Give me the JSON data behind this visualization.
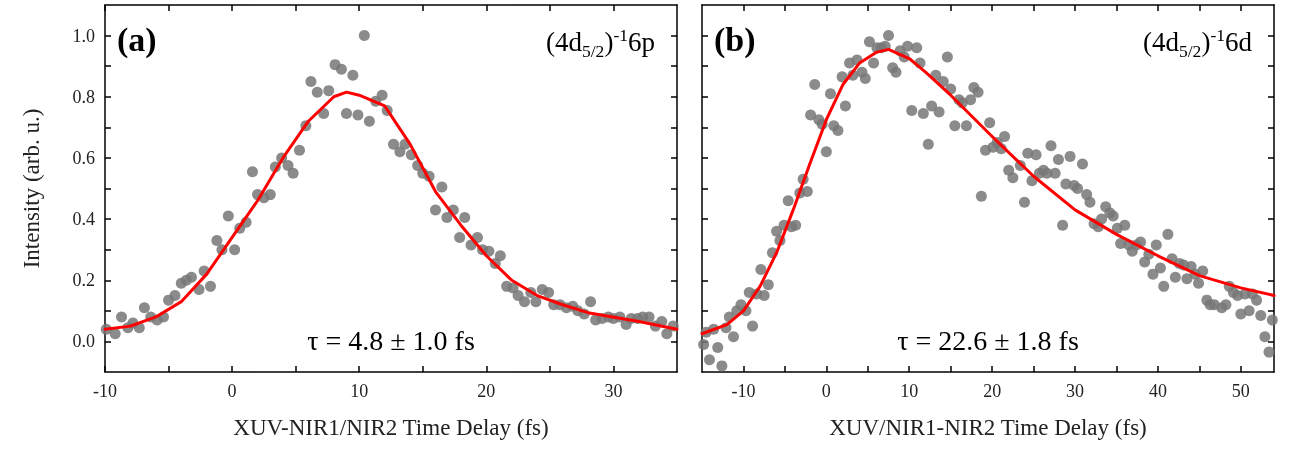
{
  "chart_data": [
    {
      "type": "scatter",
      "xlabel": "XUV-NIR1/NIR2 Time Delay (fs)",
      "ylabel": "Intensity (arb. u.)",
      "annotations": [
        "(a)",
        "(4d$_{5/2}$)$^{-1}$6p",
        "τ = 4.8 ± 1.0 fs"
      ],
      "xlim": [
        -10,
        35
      ],
      "xticks": [
        -10,
        {
          "value": -5,
          "label": null
        },
        0,
        {
          "value": 5,
          "label": null
        },
        10,
        {
          "value": 15,
          "label": null
        },
        20,
        {
          "value": 25,
          "label": null
        },
        30
      ],
      "ylim": [
        -0.1,
        1.1
      ],
      "yticks": [
        {
          "value": 0,
          "label": "0.0"
        },
        {
          "value": 0.1,
          "label": null
        },
        0.2,
        {
          "value": 0.3,
          "label": null
        },
        0.4,
        {
          "value": 0.5,
          "label": null
        },
        0.6,
        {
          "value": 0.7,
          "label": null
        },
        0.8,
        {
          "value": 0.9,
          "label": null
        },
        {
          "value": 1,
          "label": "1.0"
        }
      ],
      "grid": false,
      "marker": "circle",
      "series": [
        {
          "color": "#777777",
          "x": [
            -9.9,
            -9.2,
            -8.7,
            -8.2,
            -7.8,
            -7.3,
            -6.9,
            -6.4,
            -5.9,
            -5.4,
            -5.0,
            -4.5,
            -4.0,
            -3.6,
            -3.2,
            -2.6,
            -2.2,
            -1.7,
            -1.2,
            -0.8,
            -0.3,
            0.2,
            0.6,
            1.1,
            1.6,
            2.0,
            2.5,
            3.0,
            3.4,
            3.9,
            4.4,
            4.8,
            5.3,
            5.8,
            6.2,
            6.7,
            7.2,
            7.6,
            8.1,
            8.6,
            9.0,
            9.5,
            9.9,
            10.4,
            10.8,
            11.3,
            11.8,
            12.2,
            12.7,
            13.2,
            13.6,
            14.1,
            14.6,
            15.0,
            15.5,
            16.0,
            16.5,
            16.9,
            17.4,
            17.9,
            18.3,
            18.8,
            19.3,
            19.7,
            20.2,
            20.7,
            21.1,
            21.6,
            22.1,
            22.5,
            23.0,
            23.5,
            23.9,
            24.4,
            24.9,
            25.3,
            25.8,
            26.3,
            26.8,
            27.2,
            27.7,
            28.2,
            28.6,
            29.1,
            29.6,
            30.0,
            30.5,
            31.0,
            31.4,
            31.9,
            32.3,
            32.8,
            33.3,
            33.8,
            34.2,
            34.7
          ],
          "values": [
            0.04,
            0.025,
            0.08,
            0.045,
            0.06,
            0.045,
            0.11,
            0.08,
            0.07,
            0.08,
            0.135,
            0.15,
            0.19,
            0.2,
            0.21,
            0.17,
            0.23,
            0.18,
            0.33,
            0.3,
            0.41,
            0.3,
            0.37,
            0.39,
            0.555,
            0.48,
            0.47,
            0.48,
            0.57,
            0.6,
            0.575,
            0.55,
            0.625,
            0.705,
            0.85,
            0.815,
            0.745,
            0.82,
            0.905,
            0.89,
            0.745,
            0.87,
            0.74,
            1.0,
            0.72,
            0.785,
            0.805,
            0.755,
            0.645,
            0.62,
            0.645,
            0.61,
            0.575,
            0.55,
            0.54,
            0.43,
            0.505,
            0.405,
            0.43,
            0.34,
            0.405,
            0.315,
            0.34,
            0.3,
            0.295,
            0.255,
            0.28,
            0.18,
            0.175,
            0.15,
            0.13,
            0.16,
            0.13,
            0.17,
            0.16,
            0.12,
            0.12,
            0.11,
            0.115,
            0.1,
            0.09,
            0.13,
            0.07,
            0.075,
            0.08,
            0.075,
            0.08,
            0.055,
            0.075,
            0.075,
            0.08,
            0.08,
            0.05,
            0.065,
            0.025,
            0.05
          ]
        },
        {
          "type": "line",
          "color": "#ff0000",
          "marker": "none",
          "line_style": "solid",
          "x": [
            -10,
            -8,
            -6,
            -4,
            -2,
            0,
            2,
            4,
            6,
            8,
            9,
            10,
            12,
            14,
            16,
            18,
            20,
            22,
            24,
            26,
            28,
            32,
            35
          ],
          "values": [
            0.04,
            0.05,
            0.08,
            0.13,
            0.22,
            0.34,
            0.46,
            0.6,
            0.72,
            0.8,
            0.815,
            0.805,
            0.77,
            0.645,
            0.49,
            0.38,
            0.28,
            0.2,
            0.15,
            0.12,
            0.094,
            0.065,
            0.04
          ]
        }
      ]
    },
    {
      "type": "scatter",
      "xlabel": "XUV/NIR1-NIR2 Time Delay (fs)",
      "annotations": [
        "(b)",
        "(4d$_{5/2}$)$^{-1}$6d",
        "τ = 22.6 ± 1.8 fs"
      ],
      "tick_labels": "x",
      "xlim": [
        -15,
        54
      ],
      "xticks": [
        -10,
        {
          "value": -5,
          "label": null
        },
        0,
        {
          "value": 5,
          "label": null
        },
        10,
        {
          "value": 15,
          "label": null
        },
        20,
        {
          "value": 25,
          "label": null
        },
        30,
        {
          "value": 35,
          "label": null
        },
        40,
        {
          "value": 45,
          "label": null
        },
        50
      ],
      "ylim": [
        -0.1,
        1.1
      ],
      "yticks": [
        0,
        {
          "value": 0.1,
          "label": null
        },
        0.2,
        {
          "value": 0.3,
          "label": null
        },
        0.4,
        {
          "value": 0.5,
          "label": null
        },
        0.6,
        {
          "value": 0.7,
          "label": null
        },
        0.8,
        {
          "value": 0.9,
          "label": null
        },
        1
      ],
      "grid": false,
      "marker": "circle",
      "series": [
        {
          "color": "#777777",
          "x": [
            -14.8,
            -14.1,
            -13.1,
            -12.6,
            -14.5,
            -13.6,
            -12.1,
            -11.7,
            -11.2,
            -10.8,
            -10.3,
            -9.7,
            -9.3,
            -8.9,
            -8.4,
            -7.9,
            -7.5,
            -7.0,
            -6.5,
            -6.0,
            -5.6,
            -5.1,
            -4.6,
            -4.2,
            -3.7,
            -3.2,
            -2.8,
            -2.3,
            -1.9,
            -1.4,
            -0.9,
            -0.5,
            0.0,
            0.5,
            0.9,
            1.4,
            1.9,
            2.3,
            2.8,
            3.2,
            3.7,
            4.3,
            4.7,
            5.2,
            5.7,
            6.1,
            6.6,
            7.1,
            7.5,
            8.0,
            8.4,
            8.9,
            9.4,
            9.8,
            10.3,
            10.9,
            11.3,
            11.7,
            12.3,
            12.7,
            13.2,
            13.6,
            14.1,
            14.6,
            15.0,
            15.5,
            16.0,
            16.4,
            16.9,
            17.4,
            17.8,
            18.3,
            18.7,
            19.2,
            19.7,
            20.1,
            20.6,
            21.1,
            21.5,
            22.0,
            22.5,
            23.4,
            23.9,
            24.3,
            24.8,
            25.3,
            25.7,
            26.2,
            26.6,
            27.1,
            27.6,
            28.0,
            28.5,
            28.9,
            29.4,
            29.9,
            30.3,
            30.9,
            31.4,
            31.8,
            32.3,
            32.8,
            33.2,
            33.7,
            34.2,
            34.6,
            35.1,
            35.5,
            36.0,
            36.5,
            36.9,
            37.4,
            37.9,
            38.4,
            38.9,
            39.4,
            39.8,
            40.3,
            40.7,
            41.2,
            41.7,
            42.1,
            42.6,
            43.1,
            43.5,
            44.0,
            44.5,
            44.9,
            45.4,
            45.9,
            46.3,
            46.8,
            47.7,
            48.2,
            48.6,
            49.1,
            49.6,
            50.0,
            50.5,
            51.0,
            51.4,
            51.9,
            52.4,
            52.9,
            53.4,
            53.8
          ],
          "values": [
            -0.01,
            -0.06,
            -0.02,
            -0.08,
            0.03,
            0.04,
            0.045,
            0.08,
            0.015,
            0.1,
            0.12,
            0.1,
            0.16,
            0.05,
            0.155,
            0.235,
            0.15,
            0.185,
            0.29,
            0.36,
            0.33,
            0.38,
            0.46,
            0.375,
            0.38,
            0.485,
            0.53,
            0.49,
            0.74,
            0.84,
            0.725,
            0.71,
            0.62,
            0.81,
            0.705,
            0.69,
            0.865,
            0.77,
            0.91,
            0.87,
            0.92,
            0.88,
            0.86,
            0.98,
            0.91,
            0.96,
            0.96,
            0.965,
            1.0,
            0.895,
            0.88,
            0.95,
            0.93,
            0.965,
            0.755,
            0.96,
            0.91,
            0.745,
            0.645,
            0.77,
            0.87,
            0.75,
            0.85,
            0.93,
            0.825,
            0.705,
            0.79,
            0.78,
            0.705,
            0.79,
            0.83,
            0.815,
            0.475,
            0.625,
            0.715,
            0.635,
            0.65,
            0.63,
            0.67,
            0.56,
            0.535,
            0.575,
            0.455,
            0.615,
            0.525,
            0.61,
            0.55,
            0.56,
            0.55,
            0.64,
            0.55,
            0.595,
            0.38,
            0.515,
            0.605,
            0.51,
            0.5,
            0.58,
            0.48,
            0.455,
            0.385,
            0.375,
            0.4,
            0.44,
            0.42,
            0.41,
            0.37,
            0.32,
            0.38,
            0.315,
            0.295,
            0.315,
            0.325,
            0.26,
            0.285,
            0.22,
            0.315,
            0.24,
            0.18,
            0.35,
            0.27,
            0.21,
            0.255,
            0.25,
            0.205,
            0.245,
            0.22,
            0.19,
            0.23,
            0.135,
            0.12,
            0.12,
            0.11,
            0.12,
            0.18,
            0.16,
            0.15,
            0.09,
            0.155,
            0.1,
            0.155,
            0.135,
            0.085,
            0.015,
            -0.035,
            0.07
          ]
        },
        {
          "type": "line",
          "color": "#ff0000",
          "marker": "none",
          "line_style": "solid",
          "x": [
            -15,
            -12,
            -10,
            -8,
            -6,
            -4,
            -2,
            0,
            2,
            4,
            6,
            7.5,
            10,
            12,
            15,
            20,
            25,
            30,
            35,
            40,
            45,
            50,
            54
          ],
          "values": [
            0.025,
            0.055,
            0.1,
            0.18,
            0.29,
            0.43,
            0.58,
            0.725,
            0.84,
            0.91,
            0.945,
            0.955,
            0.925,
            0.88,
            0.805,
            0.67,
            0.54,
            0.43,
            0.35,
            0.28,
            0.215,
            0.175,
            0.15
          ]
        }
      ]
    }
  ]
}
